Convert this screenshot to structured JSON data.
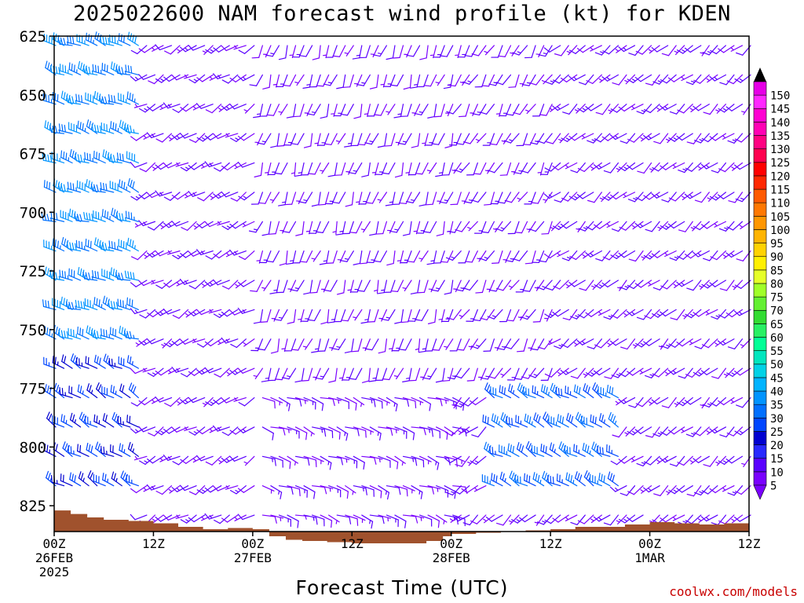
{
  "title": "2025022600 NAM forecast wind profile (kt) for KDEN",
  "xaxis_title": "Forecast Time (UTC)",
  "credit": "coolwx.com/models",
  "chart_data": {
    "type": "wind-barb-time-height",
    "y_ticks": [
      625,
      650,
      675,
      700,
      725,
      750,
      775,
      800,
      825
    ],
    "y_range_hPa": [
      625,
      836
    ],
    "x_range_hours": [
      0,
      84
    ],
    "x_ticks": [
      {
        "hour": 0,
        "line1": "00Z",
        "line2": "26FEB",
        "line3": "2025"
      },
      {
        "hour": 12,
        "line1": "12Z",
        "line2": "",
        "line3": ""
      },
      {
        "hour": 24,
        "line1": "00Z",
        "line2": "27FEB",
        "line3": ""
      },
      {
        "hour": 36,
        "line1": "12Z",
        "line2": "",
        "line3": ""
      },
      {
        "hour": 48,
        "line1": "00Z",
        "line2": "28FEB",
        "line3": ""
      },
      {
        "hour": 60,
        "line1": "12Z",
        "line2": "",
        "line3": ""
      },
      {
        "hour": 72,
        "line1": "00Z",
        "line2": "1MAR",
        "line3": ""
      },
      {
        "hour": 84,
        "line1": "12Z",
        "line2": "",
        "line3": ""
      }
    ],
    "colorbar": {
      "levels": [
        5,
        10,
        15,
        20,
        25,
        30,
        35,
        40,
        45,
        50,
        55,
        60,
        65,
        70,
        75,
        80,
        85,
        90,
        95,
        100,
        105,
        110,
        115,
        120,
        125,
        130,
        135,
        140,
        145,
        150
      ],
      "colors": [
        "#7a00ff",
        "#5a00ff",
        "#2828ff",
        "#0000d0",
        "#0046ff",
        "#0070ff",
        "#0094ff",
        "#00b4ff",
        "#00d2e6",
        "#00e6be",
        "#00ff96",
        "#28f064",
        "#32dc32",
        "#64f032",
        "#a0ff28",
        "#e6ff28",
        "#fff000",
        "#ffd200",
        "#ffb400",
        "#ff9600",
        "#ff7800",
        "#ff5a00",
        "#ff2800",
        "#ff0000",
        "#ff0050",
        "#ff0082",
        "#ff00b4",
        "#ff00d2",
        "#ff28ff",
        "#e600e6"
      ]
    },
    "terrain_color": "#a0522d",
    "surface_pressure_hPa": [
      [
        0,
        827
      ],
      [
        2,
        828.5
      ],
      [
        4,
        830
      ],
      [
        6,
        831
      ],
      [
        9,
        831.5
      ],
      [
        12,
        832.5
      ],
      [
        15,
        834
      ],
      [
        18,
        835
      ],
      [
        21,
        834.5
      ],
      [
        24,
        835
      ],
      [
        26,
        838
      ],
      [
        28,
        839.5
      ],
      [
        30,
        840
      ],
      [
        33,
        840.5
      ],
      [
        36,
        841
      ],
      [
        39,
        841
      ],
      [
        42,
        841
      ],
      [
        45,
        840
      ],
      [
        47,
        838
      ],
      [
        48,
        837
      ],
      [
        51,
        836.5
      ],
      [
        54,
        836
      ],
      [
        57,
        835.5
      ],
      [
        60,
        835
      ],
      [
        63,
        834
      ],
      [
        66,
        834
      ],
      [
        69,
        833
      ],
      [
        72,
        832
      ],
      [
        75,
        832.5
      ],
      [
        78,
        833
      ],
      [
        81,
        832.5
      ],
      [
        84,
        832.5
      ]
    ],
    "wind_regimes": [
      {
        "hours": [
          0,
          10
        ],
        "pressure": [
          625,
          760
        ],
        "speed_kt": 35,
        "dir_deg": 290
      },
      {
        "hours": [
          0,
          10
        ],
        "pressure": [
          760,
          828
        ],
        "speed_kt": 25,
        "dir_deg": 300
      },
      {
        "hours": [
          10,
          24
        ],
        "pressure": [
          625,
          830
        ],
        "speed_kt": 10,
        "dir_deg": 240
      },
      {
        "hours": [
          24,
          48
        ],
        "pressure": [
          625,
          775
        ],
        "speed_kt": 10,
        "dir_deg": 200
      },
      {
        "hours": [
          24,
          48
        ],
        "pressure": [
          775,
          840
        ],
        "speed_kt": 10,
        "dir_deg": 110
      },
      {
        "hours": [
          48,
          60
        ],
        "pressure": [
          625,
          770
        ],
        "speed_kt": 10,
        "dir_deg": 210
      },
      {
        "hours": [
          53,
          68
        ],
        "pressure": [
          775,
          825
        ],
        "speed_kt": 30,
        "dir_deg": 300
      },
      {
        "hours": [
          60,
          84
        ],
        "pressure": [
          625,
          830
        ],
        "speed_kt": 10,
        "dir_deg": 230
      }
    ]
  }
}
